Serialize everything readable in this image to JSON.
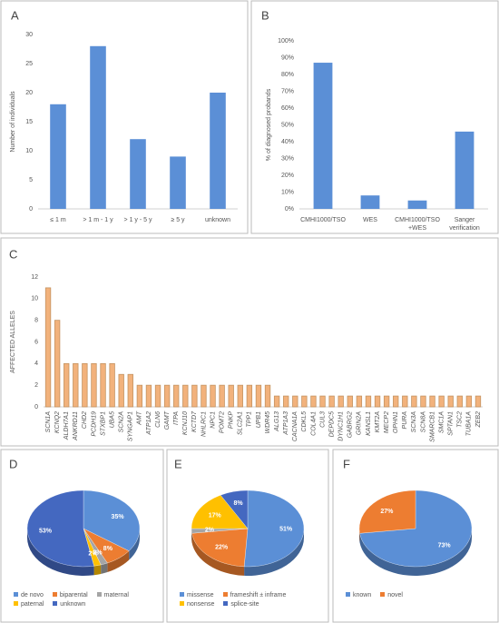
{
  "chart_data": [
    {
      "type": "bar",
      "label": "A",
      "ylabel": "Number of individuals",
      "categories": [
        "≤ 1 m",
        "> 1 m - 1 y",
        "> 1 y - 5 y",
        "≥ 5 y",
        "unknown"
      ],
      "values": [
        18,
        28,
        12,
        9,
        20
      ],
      "color": "#5b8fd6",
      "ylim": [
        0,
        30
      ],
      "yticks": [
        0,
        5,
        10,
        15,
        20,
        25,
        30
      ],
      "grid": false
    },
    {
      "type": "bar",
      "label": "B",
      "ylabel": "% of diagnosed probands",
      "categories": [
        "CMHI1000/TSO",
        "WES",
        "CMHI1000/TSO +WES",
        "Sanger verification"
      ],
      "values": [
        87,
        8,
        5,
        46
      ],
      "color": "#5b8fd6",
      "ylim": [
        0,
        100
      ],
      "yticks": [
        {
          "value": 0,
          "label": "0%"
        },
        {
          "value": 10,
          "label": "10%"
        },
        {
          "value": 20,
          "label": "20%"
        },
        {
          "value": 30,
          "label": "30%"
        },
        {
          "value": 40,
          "label": "40%"
        },
        {
          "value": 50,
          "label": "50%"
        },
        {
          "value": 60,
          "label": "60%"
        },
        {
          "value": 70,
          "label": "70%"
        },
        {
          "value": 80,
          "label": "80%"
        },
        {
          "value": 90,
          "label": "90%"
        },
        {
          "value": 100,
          "label": "100%"
        }
      ],
      "grid": false
    },
    {
      "type": "bar",
      "label": "C",
      "ylabel": "AFFECTED ALLELES",
      "categories": [
        "SCN1A",
        "KCNQ2",
        "ALDH7A1",
        "ANKRD11",
        "CHD2",
        "PCDH19",
        "STXBP1",
        "UBA5",
        "SCN2A",
        "SYNGAP1",
        "AMT",
        "ATP1A2",
        "CLN6",
        "GAMT",
        "ITPA",
        "KCNJ10",
        "KCTD7",
        "NHLRC1",
        "NPC1",
        "POMT2",
        "PNKP",
        "SLC2A1",
        "TPP1",
        "UPB1",
        "WDR45",
        "ALG13",
        "ATP1A3",
        "CACNA1A",
        "CDKL5",
        "COL4A1",
        "CUL3",
        "DEPDC5",
        "DYNC1H1",
        "GABRG2",
        "GRIN2A",
        "KANSL1",
        "KMT2A",
        "MECP2",
        "OPHN1",
        "PURA",
        "SCN3A",
        "SCN8A",
        "SMARCB1",
        "SMC1A",
        "SPTAN1",
        "TSC2",
        "TUBA1A",
        "ZEB2"
      ],
      "values": [
        11,
        8,
        4,
        4,
        4,
        4,
        4,
        4,
        3,
        3,
        2,
        2,
        2,
        2,
        2,
        2,
        2,
        2,
        2,
        2,
        2,
        2,
        2,
        2,
        2,
        1,
        1,
        1,
        1,
        1,
        1,
        1,
        1,
        1,
        1,
        1,
        1,
        1,
        1,
        1,
        1,
        1,
        1,
        1,
        1,
        1,
        1,
        1
      ],
      "color": "#f2b27c",
      "edge_color": "#c49361",
      "ylim": [
        0,
        12
      ],
      "yticks": [
        0,
        2,
        4,
        6,
        8,
        10,
        12
      ],
      "grid": false
    },
    {
      "type": "pie",
      "label": "D",
      "categories": [
        "de novo",
        "biparental",
        "maternal",
        "paternal",
        "unknown"
      ],
      "values": [
        35,
        8,
        2,
        2,
        53
      ],
      "value_labels": [
        "35%",
        "8%",
        "2%",
        "2%",
        "53%"
      ],
      "colors": [
        "#5b8fd6",
        "#ed7d31",
        "#a5a5a5",
        "#ffc000",
        "#4468c0"
      ]
    },
    {
      "type": "pie",
      "label": "E",
      "categories": [
        "missense",
        "frameshift ± inframe",
        null,
        "nonsense",
        "splice-site"
      ],
      "values": [
        51,
        22,
        2,
        17,
        8
      ],
      "value_labels": [
        "51%",
        "22%",
        "2%",
        "17%",
        "8%"
      ],
      "colors": [
        "#5b8fd6",
        "#ed7d31",
        "#a5a5a5",
        "#ffc000",
        "#4468c0"
      ]
    },
    {
      "type": "pie",
      "label": "F",
      "categories": [
        "known",
        "novel"
      ],
      "values": [
        73,
        27
      ],
      "value_labels": [
        "73%",
        "27%"
      ],
      "colors": [
        "#5b8fd6",
        "#ed7d31"
      ]
    }
  ]
}
